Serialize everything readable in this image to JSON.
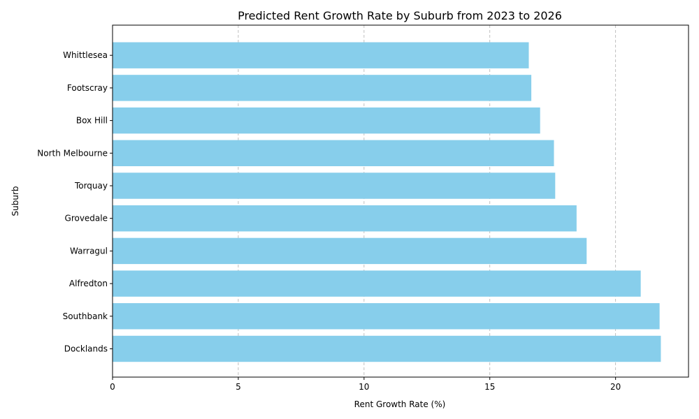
{
  "chart_data": {
    "type": "bar",
    "orientation": "horizontal",
    "title": "Predicted Rent Growth Rate by Suburb from 2023 to 2026",
    "xlabel": "Rent Growth Rate (%)",
    "ylabel": "Suburb",
    "categories": [
      "Docklands",
      "Southbank",
      "Alfredton",
      "Warragul",
      "Grovedale",
      "Torquay ",
      "North Melbourne",
      "Box Hill ",
      "Footscray",
      "Whittlesea"
    ],
    "values": [
      21.8,
      21.75,
      21.0,
      18.85,
      18.45,
      17.6,
      17.55,
      17.0,
      16.65,
      16.55
    ],
    "xlim": [
      0,
      22.9
    ],
    "xticks": [
      0,
      5,
      10,
      15,
      20
    ],
    "grid": "x-axis dashed",
    "bar_color": "#87ceeb"
  }
}
